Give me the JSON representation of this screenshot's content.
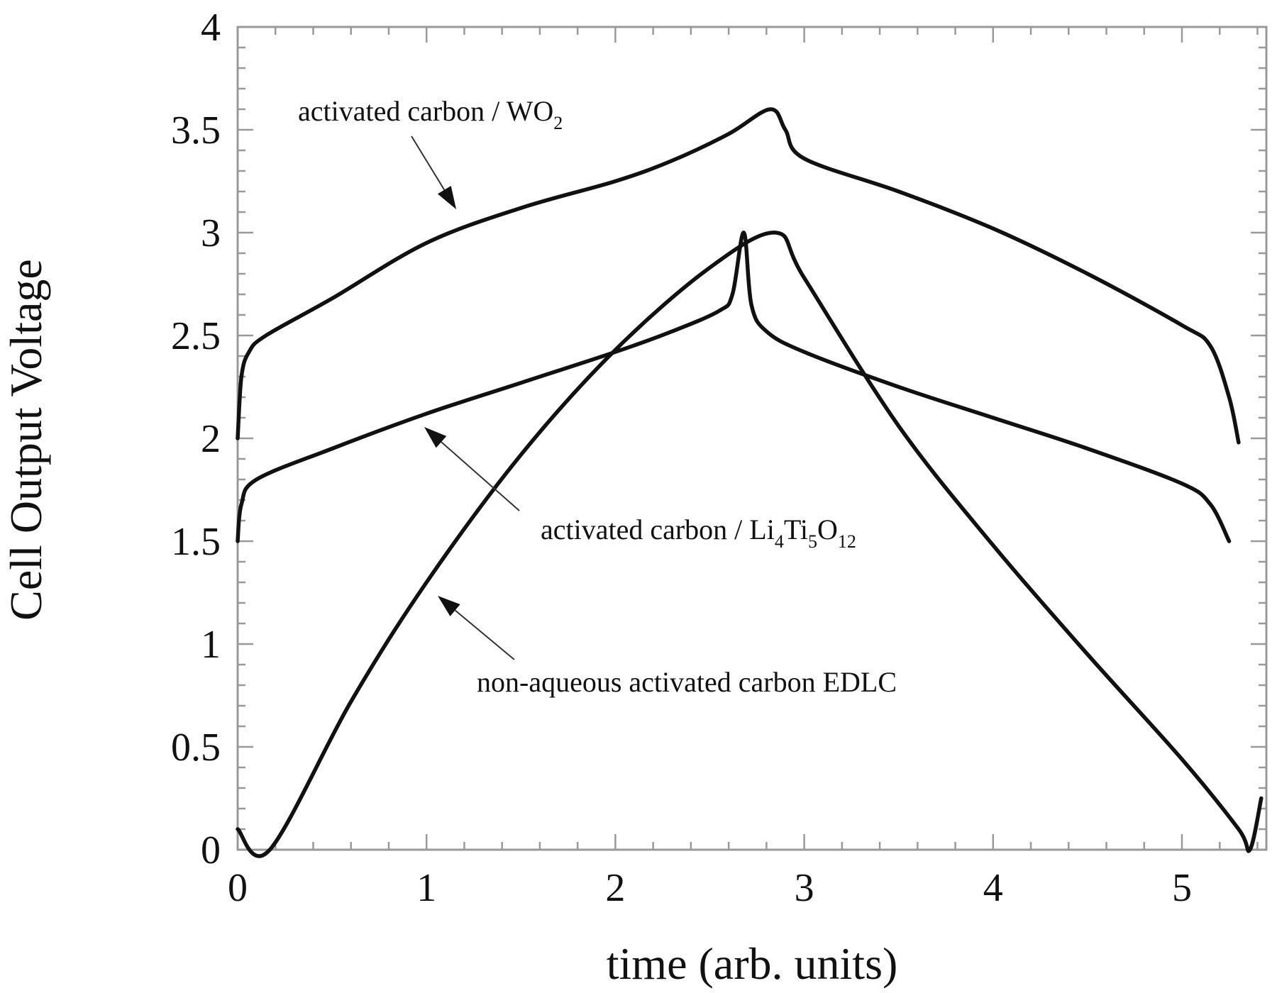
{
  "chart_data": {
    "type": "line",
    "title": "",
    "xlabel": "time (arb. units)",
    "ylabel": "Cell Output Voltage",
    "xlim": [
      0,
      5.45
    ],
    "ylim": [
      0,
      4
    ],
    "grid": false,
    "legend": "none",
    "x_ticks": [
      "0",
      "1",
      "2",
      "3",
      "4",
      "5"
    ],
    "y_ticks": [
      "0",
      "0.5",
      "1",
      "1.5",
      "2",
      "2.5",
      "3",
      "3.5",
      "4"
    ],
    "series": [
      {
        "points": [
          [
            0,
            2.0
          ],
          [
            0.02,
            2.3
          ],
          [
            0.06,
            2.42
          ],
          [
            0.15,
            2.5
          ],
          [
            0.5,
            2.68
          ],
          [
            1.0,
            2.95
          ],
          [
            1.5,
            3.12
          ],
          [
            2.0,
            3.25
          ],
          [
            2.3,
            3.35
          ],
          [
            2.6,
            3.48
          ],
          [
            2.82,
            3.6
          ],
          [
            2.9,
            3.5
          ],
          [
            3.0,
            3.36
          ],
          [
            3.5,
            3.2
          ],
          [
            4.0,
            3.02
          ],
          [
            4.5,
            2.8
          ],
          [
            5.0,
            2.55
          ],
          [
            5.15,
            2.45
          ],
          [
            5.25,
            2.2
          ],
          [
            5.3,
            1.98
          ]
        ]
      },
      {
        "points": [
          [
            0,
            1.5
          ],
          [
            0.02,
            1.68
          ],
          [
            0.1,
            1.8
          ],
          [
            0.5,
            1.95
          ],
          [
            1.0,
            2.12
          ],
          [
            1.5,
            2.27
          ],
          [
            2.0,
            2.42
          ],
          [
            2.3,
            2.52
          ],
          [
            2.55,
            2.62
          ],
          [
            2.62,
            2.7
          ],
          [
            2.68,
            3.0
          ],
          [
            2.72,
            2.65
          ],
          [
            2.8,
            2.52
          ],
          [
            3.0,
            2.42
          ],
          [
            3.5,
            2.25
          ],
          [
            4.0,
            2.1
          ],
          [
            4.5,
            1.95
          ],
          [
            5.0,
            1.78
          ],
          [
            5.15,
            1.68
          ],
          [
            5.25,
            1.5
          ]
        ]
      },
      {
        "points": [
          [
            0,
            0.1
          ],
          [
            0.17,
            0.0
          ],
          [
            0.6,
            0.72
          ],
          [
            1.0,
            1.3
          ],
          [
            1.5,
            1.92
          ],
          [
            2.0,
            2.43
          ],
          [
            2.5,
            2.83
          ],
          [
            2.85,
            3.0
          ],
          [
            3.0,
            2.78
          ],
          [
            3.5,
            2.06
          ],
          [
            4.0,
            1.48
          ],
          [
            4.5,
            0.95
          ],
          [
            5.0,
            0.44
          ],
          [
            5.3,
            0.1
          ],
          [
            5.36,
            0.0
          ],
          [
            5.42,
            0.25
          ]
        ]
      }
    ],
    "annotations": [
      {
        "text": "activated carbon / WO",
        "sub": "2"
      },
      {
        "text": "activated carbon / Li",
        "sub1": "4",
        "mid1": "Ti",
        "sub2": "5",
        "mid2": "O",
        "sub3": "12"
      },
      {
        "text": "non-aqueous activated carbon EDLC"
      }
    ]
  }
}
